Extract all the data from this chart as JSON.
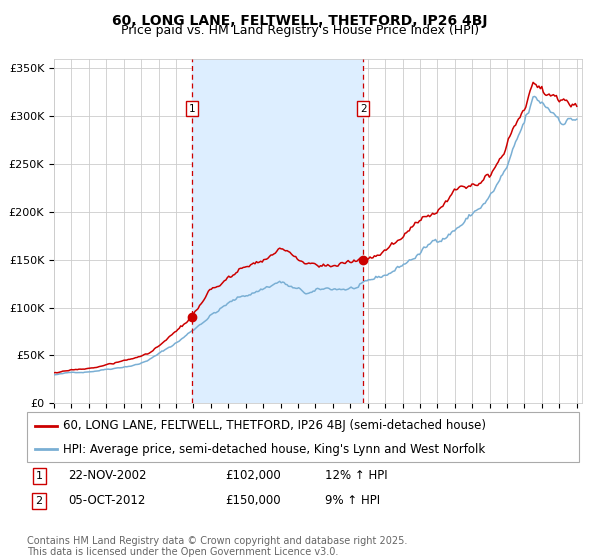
{
  "title": "60, LONG LANE, FELTWELL, THETFORD, IP26 4BJ",
  "subtitle": "Price paid vs. HM Land Registry's House Price Index (HPI)",
  "ylabel_ticks": [
    "£0",
    "£50K",
    "£100K",
    "£150K",
    "£200K",
    "£250K",
    "£300K",
    "£350K"
  ],
  "ytick_vals": [
    0,
    50000,
    100000,
    150000,
    200000,
    250000,
    300000,
    350000
  ],
  "ylim": [
    0,
    360000
  ],
  "year_start": 1995,
  "year_end": 2025,
  "sale1_date": "22-NOV-2002",
  "sale1_price": 102000,
  "sale1_hpi": "12% ↑ HPI",
  "sale1_x": 2002.9,
  "sale2_date": "05-OCT-2012",
  "sale2_price": 150000,
  "sale2_hpi": "9% ↑ HPI",
  "sale2_x": 2012.75,
  "legend_line1": "60, LONG LANE, FELTWELL, THETFORD, IP26 4BJ (semi-detached house)",
  "legend_line2": "HPI: Average price, semi-detached house, King's Lynn and West Norfolk",
  "footer": "Contains HM Land Registry data © Crown copyright and database right 2025.\nThis data is licensed under the Open Government Licence v3.0.",
  "line_red": "#cc0000",
  "line_blue": "#7aafd4",
  "fill_color": "#ddeeff",
  "bg_color": "#ffffff",
  "grid_color": "#cccccc",
  "vline_color": "#cc0000",
  "marker_color": "#cc0000",
  "box_color": "#cc0000",
  "title_fontsize": 10,
  "subtitle_fontsize": 9,
  "tick_fontsize": 8,
  "legend_fontsize": 8.5,
  "footer_fontsize": 7
}
